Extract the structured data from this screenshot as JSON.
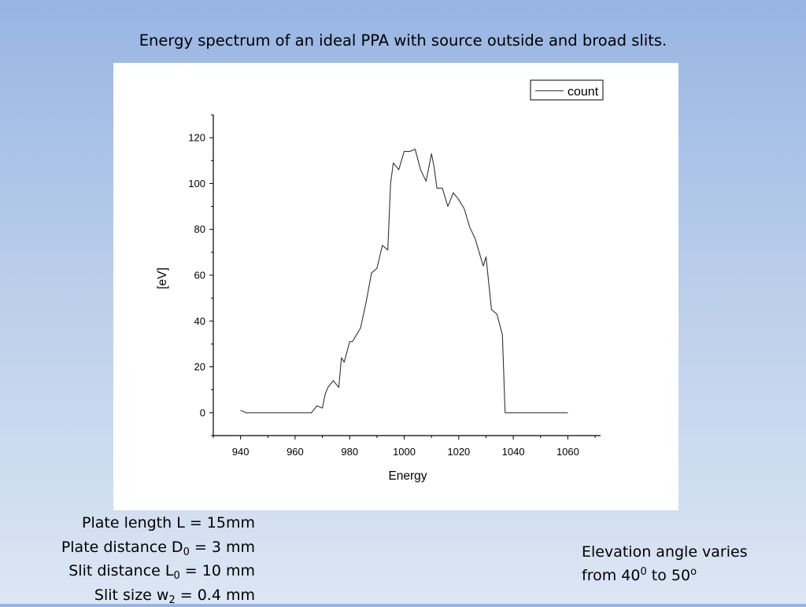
{
  "slide": {
    "title": "Energy spectrum of an ideal PPA with source outside and broad slits.",
    "params_left": [
      {
        "text": "Plate length L = 15mm"
      },
      {
        "pre": "Plate distance D",
        "sub": "0",
        "post": " = 3 mm"
      },
      {
        "pre": "Slit distance L",
        "sub": "0",
        "post": " = 10 mm"
      },
      {
        "pre": "Slit size w",
        "sub": "2",
        "post": " = 0.4 mm"
      }
    ],
    "note_right": {
      "line1": "Elevation angle varies",
      "line2_pre": " from 40",
      "line2_sup1": "0",
      "line2_mid": " to 50",
      "line2_sup2": "o"
    }
  },
  "chart_data": {
    "type": "line",
    "xlabel": "Energy",
    "ylabel": "[eV]",
    "xlim": [
      930,
      1072
    ],
    "ylim": [
      -10,
      130
    ],
    "xticks": [
      940,
      960,
      980,
      1000,
      1020,
      1040,
      1060
    ],
    "yticks": [
      0,
      20,
      40,
      60,
      80,
      100,
      120
    ],
    "grid": false,
    "legend": {
      "position": "top-right"
    },
    "line_color": "#333333",
    "series": [
      {
        "name": "count",
        "x": [
          940,
          942,
          944,
          946,
          948,
          950,
          952,
          954,
          956,
          958,
          960,
          962,
          964,
          966,
          968,
          970,
          971,
          972,
          974,
          976,
          977,
          978,
          980,
          981,
          982,
          984,
          986,
          988,
          990,
          992,
          994,
          995,
          996,
          998,
          1000,
          1002,
          1004,
          1006,
          1008,
          1010,
          1011,
          1012,
          1014,
          1016,
          1018,
          1020,
          1022,
          1024,
          1026,
          1028,
          1029,
          1030,
          1032,
          1034,
          1036,
          1037,
          1040,
          1044,
          1048,
          1052,
          1056,
          1060
        ],
        "y": [
          1,
          0,
          0,
          0,
          0,
          0,
          0,
          0,
          0,
          0,
          0,
          0,
          0,
          0,
          3,
          2,
          8,
          11,
          14,
          11,
          24,
          22,
          31,
          31,
          33,
          37,
          48,
          61,
          63,
          73,
          71,
          100,
          109,
          106,
          114,
          114,
          115,
          106,
          101,
          113,
          107,
          98,
          98,
          90,
          96,
          93,
          89,
          81,
          76,
          68,
          64,
          68,
          45,
          43,
          34,
          0,
          0,
          0,
          0,
          0,
          0,
          0
        ]
      }
    ]
  }
}
